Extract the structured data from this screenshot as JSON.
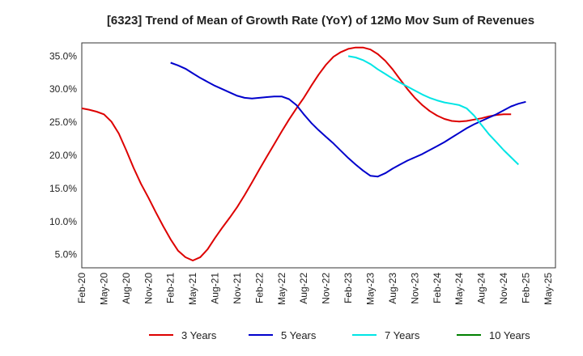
{
  "chart_data": {
    "type": "line",
    "title": "[6323]  Trend of Mean of Growth Rate (YoY) of 12Mo Mov Sum of Revenues",
    "xlabel": "",
    "ylabel": "",
    "ylim": [
      3.0,
      37.0
    ],
    "yticks": [
      5.0,
      10.0,
      15.0,
      20.0,
      25.0,
      30.0,
      35.0
    ],
    "ytick_labels": [
      "5.0%",
      "10.0%",
      "15.0%",
      "20.0%",
      "25.0%",
      "30.0%",
      "35.0%"
    ],
    "x_months_total": 64,
    "xtick_labels": [
      "Feb-20",
      "May-20",
      "Aug-20",
      "Nov-20",
      "Feb-21",
      "May-21",
      "Aug-21",
      "Nov-21",
      "Feb-22",
      "May-22",
      "Aug-22",
      "Nov-22",
      "Feb-23",
      "May-23",
      "Aug-23",
      "Nov-23",
      "Feb-24",
      "May-24",
      "Aug-24",
      "Nov-24",
      "Feb-25",
      "May-25"
    ],
    "grid": true,
    "legend_position": "bottom",
    "series": [
      {
        "name": "3 Years",
        "color": "#dd0000",
        "start_index": 0,
        "values": [
          27.1,
          26.9,
          26.6,
          26.2,
          25.1,
          23.3,
          20.8,
          18.1,
          15.7,
          13.6,
          11.4,
          9.3,
          7.3,
          5.6,
          4.6,
          4.1,
          4.6,
          5.8,
          7.5,
          9.1,
          10.6,
          12.2,
          14.0,
          15.9,
          17.9,
          19.8,
          21.7,
          23.6,
          25.4,
          27.1,
          28.7,
          30.5,
          32.2,
          33.7,
          34.9,
          35.6,
          36.1,
          36.3,
          36.3,
          36.0,
          35.3,
          34.3,
          33.0,
          31.5,
          30.0,
          28.7,
          27.6,
          26.7,
          26.0,
          25.5,
          25.2,
          25.1,
          25.2,
          25.4,
          25.6,
          25.9,
          26.1,
          26.2,
          26.2
        ]
      },
      {
        "name": "5 Years",
        "color": "#0000cc",
        "start_index": 12,
        "values": [
          34.0,
          33.6,
          33.1,
          32.4,
          31.7,
          31.1,
          30.5,
          30.0,
          29.5,
          29.0,
          28.7,
          28.6,
          28.7,
          28.8,
          28.9,
          28.9,
          28.5,
          27.6,
          26.2,
          24.9,
          23.8,
          22.8,
          21.8,
          20.7,
          19.6,
          18.6,
          17.7,
          16.9,
          16.8,
          17.3,
          18.0,
          18.6,
          19.2,
          19.7,
          20.2,
          20.8,
          21.4,
          22.0,
          22.7,
          23.4,
          24.1,
          24.7,
          25.2,
          25.7,
          26.2,
          26.8,
          27.4,
          27.8,
          28.1
        ]
      },
      {
        "name": "7 Years",
        "color": "#00e5e5",
        "start_index": 36,
        "values": [
          35.0,
          34.8,
          34.4,
          33.8,
          33.0,
          32.3,
          31.6,
          31.0,
          30.4,
          29.8,
          29.2,
          28.7,
          28.3,
          28.0,
          27.8,
          27.6,
          27.1,
          26.0,
          24.6,
          23.2,
          22.0,
          20.8,
          19.7,
          18.6
        ]
      },
      {
        "name": "10 Years",
        "color": "#008000",
        "start_index": 0,
        "values": []
      }
    ]
  }
}
